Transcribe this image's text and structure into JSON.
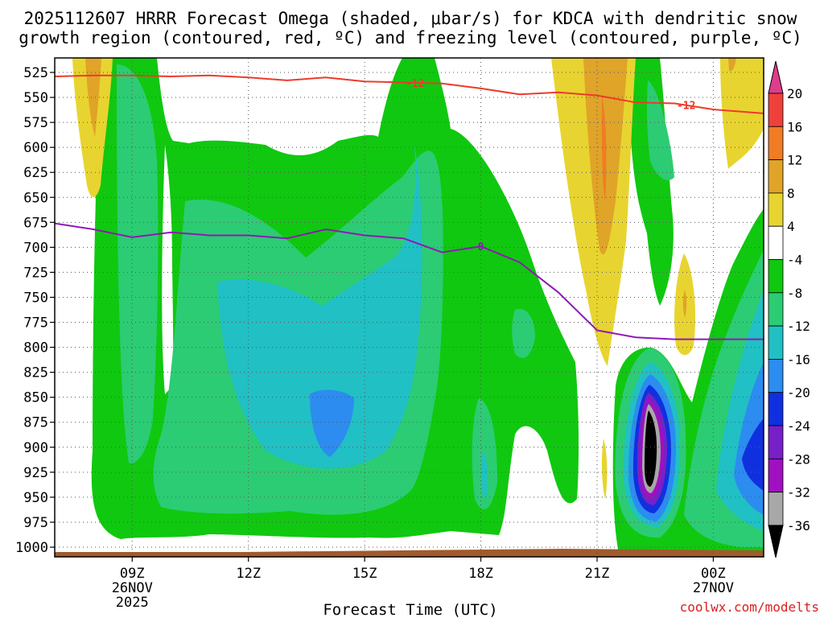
{
  "chart_data": {
    "type": "contour",
    "title_line1": "2025112607 HRRR Forecast Omega (shaded, μbar/s) for KDCA with dendritic snow",
    "title_line2": "growth region (contoured, red, ºC) and freezing level (contoured, purple, ºC)",
    "xlabel": "Forecast Time (UTC)",
    "credit": "coolwx.com/modelts",
    "x_range_hours": [
      7,
      25.3
    ],
    "x_ticks": [
      {
        "hour": 9,
        "line1": "09Z",
        "line2": "26NOV",
        "line3": "2025"
      },
      {
        "hour": 12,
        "line1": "12Z",
        "line2": "",
        "line3": ""
      },
      {
        "hour": 15,
        "line1": "15Z",
        "line2": "",
        "line3": ""
      },
      {
        "hour": 18,
        "line1": "18Z",
        "line2": "",
        "line3": ""
      },
      {
        "hour": 21,
        "line1": "21Z",
        "line2": "",
        "line3": ""
      },
      {
        "hour": 24,
        "line1": "00Z",
        "line2": "27NOV",
        "line3": ""
      }
    ],
    "y_range_hPa": [
      510,
      1020
    ],
    "y_ticks": [
      "525",
      "550",
      "575",
      "600",
      "625",
      "650",
      "675",
      "700",
      "725",
      "750",
      "775",
      "800",
      "825",
      "850",
      "875",
      "900",
      "925",
      "950",
      "975",
      "1000"
    ],
    "colorbar": {
      "labels": [
        "20",
        "16",
        "12",
        "8",
        "4",
        "-4",
        "-8",
        "-12",
        "-16",
        "-20",
        "-24",
        "-28",
        "-32",
        "-36"
      ],
      "colors": [
        "#e03c8c",
        "#f0403c",
        "#f07c24",
        "#e0a428",
        "#e8d430",
        "#ffffff",
        "#10c810",
        "#2ccc74",
        "#20c0c4",
        "#2c8cf0",
        "#1030e0",
        "#7820c8",
        "#a010c0",
        "#a8a8a8",
        "#000000"
      ]
    },
    "freezing_level": {
      "label": "0",
      "color": "#9018b8",
      "points": [
        [
          7,
          676
        ],
        [
          8,
          682
        ],
        [
          9,
          690
        ],
        [
          10,
          685
        ],
        [
          11,
          688
        ],
        [
          12,
          688
        ],
        [
          13,
          691
        ],
        [
          14,
          682
        ],
        [
          15,
          688
        ],
        [
          16,
          691
        ],
        [
          17,
          705
        ],
        [
          18,
          699
        ],
        [
          19,
          715
        ],
        [
          20,
          745
        ],
        [
          21,
          783
        ],
        [
          22,
          790
        ],
        [
          23,
          792
        ],
        [
          24,
          792
        ],
        [
          25.3,
          792
        ]
      ]
    },
    "dgz_top": {
      "label": "-12",
      "color": "#ee3a2a",
      "points": [
        [
          7,
          529
        ],
        [
          8,
          528
        ],
        [
          9,
          528
        ],
        [
          10,
          529
        ],
        [
          11,
          528
        ],
        [
          12,
          530
        ],
        [
          13,
          533
        ],
        [
          14,
          530
        ],
        [
          15,
          534
        ],
        [
          16,
          535
        ],
        [
          17,
          536
        ],
        [
          18,
          541
        ],
        [
          19,
          547
        ],
        [
          20,
          545
        ],
        [
          21,
          548
        ],
        [
          22,
          555
        ],
        [
          23,
          556
        ],
        [
          24,
          562
        ],
        [
          25.3,
          566
        ]
      ]
    }
  }
}
